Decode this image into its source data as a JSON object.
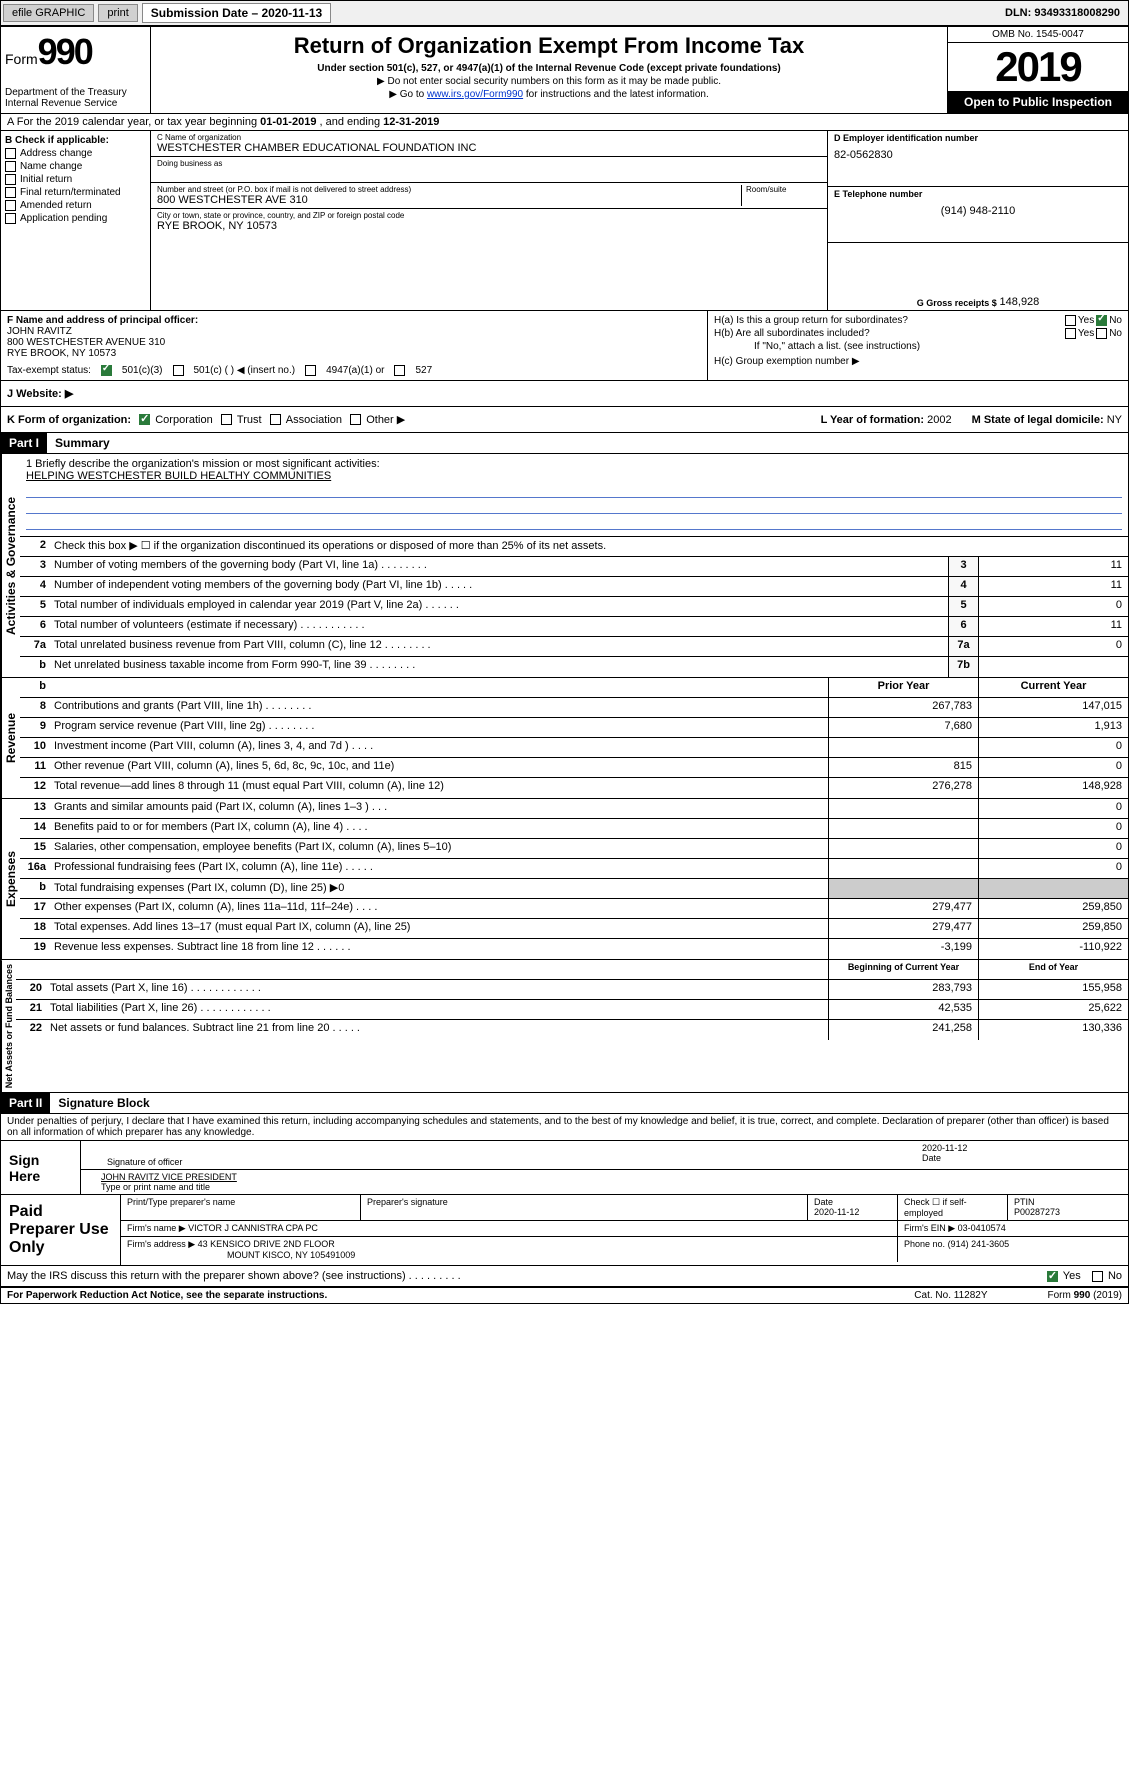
{
  "topbar": {
    "efile": "efile GRAPHIC",
    "print": "print",
    "sub_label": "Submission Date – 2020-11-13",
    "dln": "DLN: 93493318008290"
  },
  "header": {
    "form_prefix": "Form",
    "form_num": "990",
    "dept": "Department of the Treasury\nInternal Revenue Service",
    "title": "Return of Organization Exempt From Income Tax",
    "subtitle": "Under section 501(c), 527, or 4947(a)(1) of the Internal Revenue Code (except private foundations)",
    "note1": "▶ Do not enter social security numbers on this form as it may be made public.",
    "note2_pre": "▶ Go to ",
    "note2_link": "www.irs.gov/Form990",
    "note2_post": " for instructions and the latest information.",
    "omb": "OMB No. 1545-0047",
    "year": "2019",
    "open": "Open to Public Inspection"
  },
  "period": {
    "text_pre": "A For the 2019 calendar year, or tax year beginning ",
    "begin": "01-01-2019",
    "mid": " , and ending ",
    "end": "12-31-2019"
  },
  "boxB": {
    "title": "B Check if applicable:",
    "items": [
      "Address change",
      "Name change",
      "Initial return",
      "Final return/terminated",
      "Amended return",
      "Application pending"
    ]
  },
  "boxC": {
    "name_label": "C Name of organization",
    "name": "WESTCHESTER CHAMBER EDUCATIONAL FOUNDATION INC",
    "dba_label": "Doing business as",
    "addr_label": "Number and street (or P.O. box if mail is not delivered to street address)",
    "room_label": "Room/suite",
    "addr": "800 WESTCHESTER AVE 310",
    "city_label": "City or town, state or province, country, and ZIP or foreign postal code",
    "city": "RYE BROOK, NY  10573"
  },
  "boxD": {
    "label": "D Employer identification number",
    "val": "82-0562830"
  },
  "boxE": {
    "label": "E Telephone number",
    "val": "(914) 948-2110"
  },
  "boxG": {
    "label": "G Gross receipts $",
    "val": "148,928"
  },
  "boxF": {
    "label": "F  Name and address of principal officer:",
    "name": "JOHN RAVITZ",
    "addr1": "800 WESTCHESTER AVENUE 310",
    "addr2": "RYE BROOK, NY  10573"
  },
  "boxH": {
    "ha": "H(a)  Is this a group return for subordinates?",
    "hb": "H(b)  Are all subordinates included?",
    "hb_note": "If \"No,\" attach a list. (see instructions)",
    "hc": "H(c)  Group exemption number ▶",
    "yes": "Yes",
    "no": "No"
  },
  "tax_status": {
    "label": "Tax-exempt status:",
    "opt1": "501(c)(3)",
    "opt2": "501(c) (   ) ◀ (insert no.)",
    "opt3": "4947(a)(1) or",
    "opt4": "527"
  },
  "boxJ": {
    "label": "J     Website: ▶"
  },
  "boxK": {
    "label": "K Form of organization:",
    "opts": [
      "Corporation",
      "Trust",
      "Association",
      "Other ▶"
    ],
    "l_label": "L Year of formation:",
    "l_val": "2002",
    "m_label": "M State of legal domicile:",
    "m_val": "NY"
  },
  "partI": {
    "header": "Part I",
    "title": "Summary"
  },
  "mission": {
    "q": "1  Briefly describe the organization's mission or most significant activities:",
    "text": "HELPING WESTCHESTER BUILD HEALTHY COMMUNITIES"
  },
  "gov_label": "Activities & Governance",
  "rev_label": "Revenue",
  "exp_label": "Expenses",
  "net_label": "Net Assets or Fund Balances",
  "lines_gov": [
    {
      "n": "2",
      "t": "Check this box ▶ ☐  if the organization discontinued its operations or disposed of more than 25% of its net assets.",
      "box": "",
      "v": ""
    },
    {
      "n": "3",
      "t": "Number of voting members of the governing body (Part VI, line 1a)   .    .    .    .    .    .    .    .",
      "box": "3",
      "v": "11"
    },
    {
      "n": "4",
      "t": "Number of independent voting members of the governing body (Part VI, line 1b)   .    .    .    .    .",
      "box": "4",
      "v": "11"
    },
    {
      "n": "5",
      "t": "Total number of individuals employed in calendar year 2019 (Part V, line 2a)   .    .    .    .    .    .",
      "box": "5",
      "v": "0"
    },
    {
      "n": "6",
      "t": "Total number of volunteers (estimate if necessary)   .    .    .    .    .    .    .    .    .    .    .",
      "box": "6",
      "v": "11"
    },
    {
      "n": "7a",
      "t": "Total unrelated business revenue from Part VIII, column (C), line 12   .    .    .    .    .    .    .    .",
      "box": "7a",
      "v": "0"
    },
    {
      "n": "b",
      "t": "Net unrelated business taxable income from Form 990-T, line 39   .    .    .    .    .    .    .    .",
      "box": "7b",
      "v": ""
    }
  ],
  "two_col_header": {
    "prior": "Prior Year",
    "current": "Current Year",
    "begin": "Beginning of Current Year",
    "end": "End of Year"
  },
  "lines_rev": [
    {
      "n": "8",
      "t": "Contributions and grants (Part VIII, line 1h)   .    .    .    .    .    .    .    .",
      "p": "267,783",
      "c": "147,015"
    },
    {
      "n": "9",
      "t": "Program service revenue (Part VIII, line 2g)   .    .    .    .    .    .    .    .",
      "p": "7,680",
      "c": "1,913"
    },
    {
      "n": "10",
      "t": "Investment income (Part VIII, column (A), lines 3, 4, and 7d )   .    .    .    .",
      "p": "",
      "c": "0"
    },
    {
      "n": "11",
      "t": "Other revenue (Part VIII, column (A), lines 5, 6d, 8c, 9c, 10c, and 11e)",
      "p": "815",
      "c": "0"
    },
    {
      "n": "12",
      "t": "Total revenue—add lines 8 through 11 (must equal Part VIII, column (A), line 12)",
      "p": "276,278",
      "c": "148,928"
    }
  ],
  "lines_exp": [
    {
      "n": "13",
      "t": "Grants and similar amounts paid (Part IX, column (A), lines 1–3 )   .    .    .",
      "p": "",
      "c": "0"
    },
    {
      "n": "14",
      "t": "Benefits paid to or for members (Part IX, column (A), line 4)   .    .    .    .",
      "p": "",
      "c": "0"
    },
    {
      "n": "15",
      "t": "Salaries, other compensation, employee benefits (Part IX, column (A), lines 5–10)",
      "p": "",
      "c": "0"
    },
    {
      "n": "16a",
      "t": "Professional fundraising fees (Part IX, column (A), line 11e)   .    .    .    .    .",
      "p": "",
      "c": "0"
    },
    {
      "n": "b",
      "t": "Total fundraising expenses (Part IX, column (D), line 25) ▶0",
      "p": "__HIDE_P__",
      "c": "__HIDE_C__"
    },
    {
      "n": "17",
      "t": "Other expenses (Part IX, column (A), lines 11a–11d, 11f–24e)   .    .    .    .",
      "p": "279,477",
      "c": "259,850"
    },
    {
      "n": "18",
      "t": "Total expenses. Add lines 13–17 (must equal Part IX, column (A), line 25)",
      "p": "279,477",
      "c": "259,850"
    },
    {
      "n": "19",
      "t": "Revenue less expenses. Subtract line 18 from line 12   .    .    .    .    .    .",
      "p": "-3,199",
      "c": "-110,922"
    }
  ],
  "lines_net": [
    {
      "n": "20",
      "t": "Total assets (Part X, line 16)   .    .    .    .    .    .    .    .    .    .    .    .",
      "p": "283,793",
      "c": "155,958"
    },
    {
      "n": "21",
      "t": "Total liabilities (Part X, line 26)   .    .    .    .    .    .    .    .    .    .    .    .",
      "p": "42,535",
      "c": "25,622"
    },
    {
      "n": "22",
      "t": "Net assets or fund balances. Subtract line 21 from line 20   .    .    .    .    .",
      "p": "241,258",
      "c": "130,336"
    }
  ],
  "partII": {
    "header": "Part II",
    "title": "Signature Block"
  },
  "penalties": "Under penalties of perjury, I declare that I have examined this return, including accompanying schedules and statements, and to the best of my knowledge and belief, it is true, correct, and complete. Declaration of preparer (other than officer) is based on all information of which preparer has any knowledge.",
  "sign": {
    "here": "Sign Here",
    "sig_label": "Signature of officer",
    "date": "2020-11-12",
    "date_label": "Date",
    "name": "JOHN RAVITZ  VICE PRESIDENT",
    "name_label": "Type or print name and title"
  },
  "prep": {
    "label": "Paid Preparer Use Only",
    "h1": "Print/Type preparer's name",
    "h2": "Preparer's signature",
    "h3": "Date",
    "h4": "Check ☐ if self-employed",
    "h5": "PTIN",
    "date": "2020-11-12",
    "ptin": "P00287273",
    "firm_label": "Firm's name      ▶",
    "firm": "VICTOR J CANNISTRA CPA PC",
    "ein_label": "Firm's EIN ▶",
    "ein": "03-0410574",
    "addr_label": "Firm's address ▶",
    "addr1": "43 KENSICO DRIVE 2ND FLOOR",
    "addr2": "MOUNT KISCO, NY  105491009",
    "phone_label": "Phone no.",
    "phone": "(914) 241-3605"
  },
  "discuss": {
    "q": "May the IRS discuss this return with the preparer shown above? (see instructions)   .    .    .    .    .    .    .    .    .",
    "yes": "Yes",
    "no": "No"
  },
  "bottom": {
    "pra": "For Paperwork Reduction Act Notice, see the separate instructions.",
    "cat": "Cat. No. 11282Y",
    "form": "Form 990 (2019)"
  }
}
